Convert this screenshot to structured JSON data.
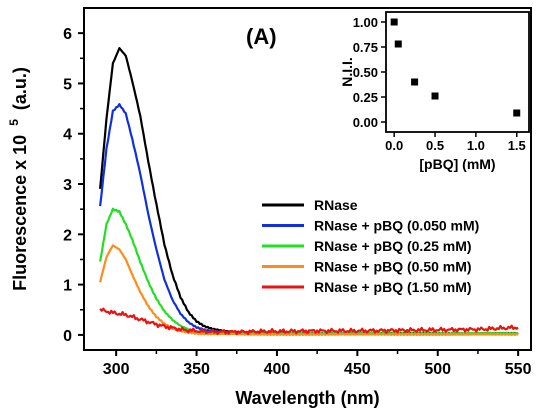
{
  "chart_data": {
    "type": "line",
    "panel_label": "(A)",
    "xlabel": "Wavelength (nm)",
    "ylabel": "Fluorescence x 10",
    "ylabel_superscript": "5",
    "ylabel_unit": "(a.u.)",
    "xlim": [
      280,
      558
    ],
    "ylim": [
      -0.3,
      6.5
    ],
    "xticks": [
      300,
      350,
      400,
      450,
      500,
      550
    ],
    "yticks": [
      0,
      1,
      2,
      3,
      4,
      5,
      6
    ],
    "legend_position": "center-right",
    "series": [
      {
        "name": "RNase",
        "color": "#000000",
        "x": [
          290,
          294,
          298,
          302,
          306,
          310,
          315,
          320,
          325,
          330,
          335,
          340,
          345,
          350,
          355,
          360,
          365,
          370,
          375,
          380,
          390,
          400,
          425,
          450,
          475,
          500,
          525,
          550
        ],
        "y": [
          2.9,
          4.3,
          5.4,
          5.7,
          5.55,
          5.05,
          4.35,
          3.45,
          2.6,
          1.8,
          1.2,
          0.75,
          0.45,
          0.27,
          0.17,
          0.12,
          0.09,
          0.07,
          0.06,
          0.05,
          0.04,
          0.04,
          0.03,
          0.03,
          0.03,
          0.03,
          0.03,
          0.03
        ]
      },
      {
        "name": "RNase + pBQ (0.050 mM)",
        "color": "#1030e0",
        "x": [
          290,
          294,
          298,
          302,
          306,
          310,
          315,
          320,
          325,
          330,
          335,
          340,
          345,
          350,
          355,
          360,
          365,
          370,
          375,
          380,
          390,
          400,
          425,
          450,
          475,
          500,
          525,
          550
        ],
        "y": [
          2.55,
          3.7,
          4.45,
          4.58,
          4.4,
          3.9,
          3.2,
          2.4,
          1.7,
          1.1,
          0.7,
          0.42,
          0.25,
          0.15,
          0.1,
          0.07,
          0.06,
          0.05,
          0.04,
          0.04,
          0.03,
          0.03,
          0.03,
          0.03,
          0.02,
          0.02,
          0.02,
          0.02
        ]
      },
      {
        "name": "RNase + pBQ (0.25 mM)",
        "color": "#20e020",
        "x": [
          290,
          294,
          298,
          302,
          306,
          310,
          315,
          320,
          325,
          330,
          335,
          340,
          345,
          350,
          355,
          360,
          365,
          370,
          375,
          380,
          390,
          400,
          425,
          450,
          475,
          500,
          525,
          550
        ],
        "y": [
          1.45,
          2.2,
          2.5,
          2.45,
          2.2,
          1.9,
          1.45,
          1.05,
          0.72,
          0.47,
          0.3,
          0.18,
          0.11,
          0.07,
          0.05,
          0.04,
          0.03,
          0.03,
          0.03,
          0.03,
          0.03,
          0.03,
          0.03,
          0.03,
          0.03,
          0.03,
          0.03,
          0.03
        ]
      },
      {
        "name": "RNase + pBQ (0.50 mM)",
        "color": "#ff8c1a",
        "x": [
          290,
          294,
          298,
          302,
          306,
          310,
          315,
          320,
          325,
          330,
          335,
          340,
          345,
          350,
          355,
          360,
          365,
          370,
          375,
          380,
          390,
          400,
          425,
          450,
          475,
          500,
          525,
          550
        ],
        "y": [
          1.05,
          1.55,
          1.78,
          1.7,
          1.5,
          1.2,
          0.85,
          0.57,
          0.36,
          0.22,
          0.13,
          0.08,
          0.05,
          0.03,
          0.02,
          0.02,
          0.02,
          0.02,
          0.02,
          0.01,
          0.01,
          0.01,
          0.01,
          0.01,
          0.01,
          0.01,
          0.01,
          0.01
        ]
      },
      {
        "name": "RNase + pBQ (1.50 mM)",
        "color": "#ee1111",
        "x": [
          290,
          294,
          298,
          302,
          306,
          310,
          315,
          320,
          325,
          330,
          335,
          340,
          345,
          350,
          355,
          360,
          365,
          370,
          375,
          380,
          390,
          400,
          425,
          450,
          475,
          500,
          525,
          550
        ],
        "y": [
          0.5,
          0.47,
          0.44,
          0.42,
          0.4,
          0.36,
          0.31,
          0.26,
          0.21,
          0.17,
          0.14,
          0.11,
          0.09,
          0.08,
          0.07,
          0.06,
          0.06,
          0.06,
          0.06,
          0.06,
          0.07,
          0.07,
          0.08,
          0.08,
          0.09,
          0.1,
          0.11,
          0.15
        ]
      }
    ],
    "inset": {
      "type": "scatter",
      "xlabel": "[pBQ] (mM)",
      "ylabel": "N.I.I.",
      "xlim": [
        -0.1,
        1.65
      ],
      "ylim": [
        -0.1,
        1.1
      ],
      "xticks": [
        "0.0",
        "0.5",
        "1.0",
        "1.5"
      ],
      "yticks": [
        "0.00",
        "0.25",
        "0.50",
        "0.75",
        "1.00"
      ],
      "x": [
        0,
        0.05,
        0.25,
        0.5,
        1.5
      ],
      "y": [
        1.0,
        0.78,
        0.4,
        0.26,
        0.09
      ],
      "color": "#000000"
    }
  }
}
